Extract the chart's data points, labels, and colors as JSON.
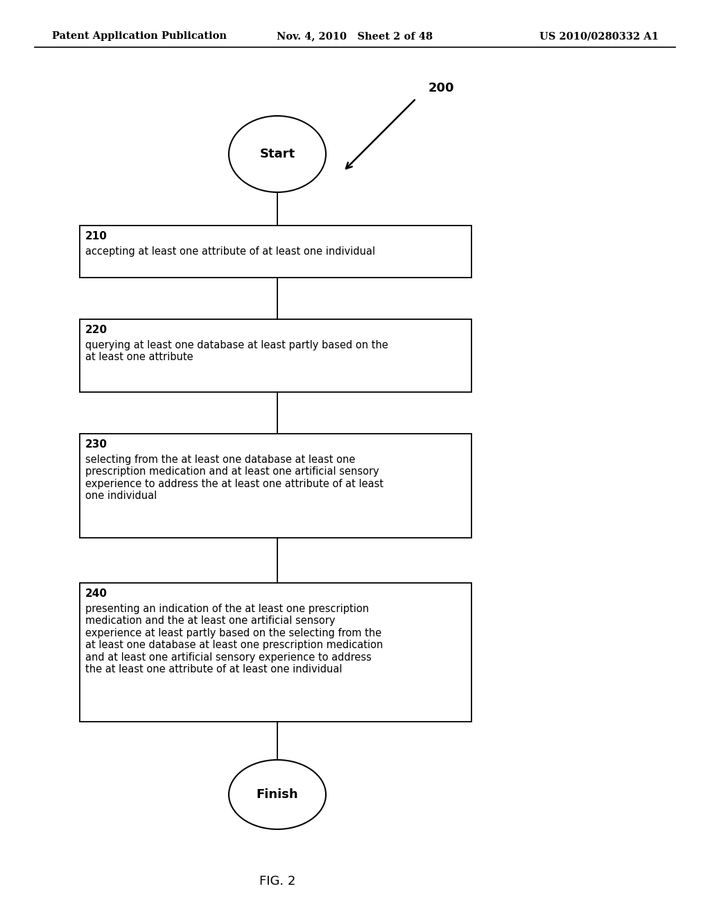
{
  "background_color": "#ffffff",
  "header_left": "Patent Application Publication",
  "header_center": "Nov. 4, 2010   Sheet 2 of 48",
  "header_right": "US 2010/0280332 A1",
  "figure_label": "FIG. 2",
  "diagram_label": "200",
  "start_label": "Start",
  "finish_label": "Finish",
  "boxes": [
    {
      "label": "210",
      "text": "accepting at least one attribute of at least one individual"
    },
    {
      "label": "220",
      "text": "querying at least one database at least partly based on the\nat least one attribute"
    },
    {
      "label": "230",
      "text": "selecting from the at least one database at least one\nprescription medication and at least one artificial sensory\nexperience to address the at least one attribute of at least\none individual"
    },
    {
      "label": "240",
      "text": "presenting an indication of the at least one prescription\nmedication and the at least one artificial sensory\nexperience at least partly based on the selecting from the\nat least one database at least one prescription medication\nand at least one artificial sensory experience to address\nthe at least one attribute of at least one individual"
    }
  ],
  "header_fontsize": 10.5,
  "label_fontsize": 11,
  "text_fontsize": 10.5,
  "fig_label_fontsize": 13,
  "circle_fontsize": 13,
  "diag_label_fontsize": 13
}
